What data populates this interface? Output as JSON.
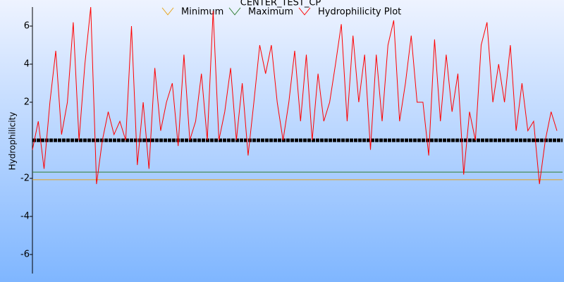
{
  "chart_data": {
    "type": "line",
    "title": "CENTER_TEST_CP",
    "y_label": "Hydrophilicity",
    "ylim": [
      -7,
      7
    ],
    "yticks": [
      -6,
      -4,
      -2,
      2,
      4,
      6
    ],
    "zero_line": true,
    "series": [
      {
        "name": "Minimum",
        "color": "#e8a317",
        "level": -2.07
      },
      {
        "name": "Maximum",
        "color": "#2e7d32",
        "level": -1.67
      },
      {
        "name": "Hydrophilicity Plot",
        "color": "#ff0000",
        "values": [
          -0.5,
          1,
          -1.5,
          2,
          4.7,
          0.3,
          2,
          6.2,
          0,
          4,
          7,
          -2.3,
          0,
          1.5,
          0.3,
          1,
          0,
          6,
          -1.3,
          2,
          -1.5,
          3.8,
          0.5,
          2,
          3,
          -0.3,
          4.5,
          0,
          1,
          3.5,
          0,
          6.8,
          0,
          1.5,
          3.8,
          0,
          3,
          -0.8,
          2,
          5,
          3.5,
          5,
          2,
          0,
          2,
          4.7,
          1,
          4.5,
          0,
          3.5,
          1,
          2,
          4,
          6.1,
          1,
          5.5,
          2,
          4.5,
          -0.5,
          4.5,
          1,
          5,
          6.3,
          1,
          3,
          5.5,
          2,
          2,
          -0.8,
          5.3,
          1,
          4.5,
          1.5,
          3.5,
          -1.8,
          1.5,
          0,
          5,
          6.2,
          2,
          4,
          2,
          5,
          0.5,
          3,
          0.5,
          1,
          -2.3,
          0,
          1.5,
          0.5
        ]
      }
    ]
  }
}
